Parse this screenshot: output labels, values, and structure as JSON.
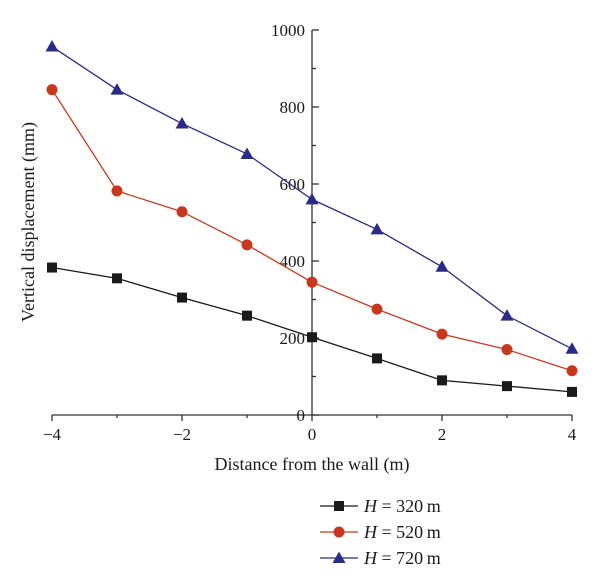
{
  "chart_data": {
    "type": "line",
    "xlabel": "Distance from the wall (m)",
    "ylabel": "Vertical displacement (mm)",
    "xlim": [
      -4,
      4
    ],
    "ylim": [
      0,
      1000
    ],
    "x_ticks": [
      -4,
      -2,
      0,
      2,
      4
    ],
    "x_tick_labels": [
      "−4",
      "−2",
      "0",
      "2",
      "4"
    ],
    "y_ticks": [
      0,
      200,
      400,
      600,
      800,
      1000
    ],
    "y_tick_labels": [
      "0",
      "200",
      "400",
      "600",
      "800",
      "1000"
    ],
    "x": [
      -4,
      -3,
      -2,
      -1,
      0,
      1,
      2,
      3,
      4
    ],
    "series": [
      {
        "name": "320",
        "marker": "square",
        "color": "#1a1a1a",
        "values": [
          383,
          355,
          305,
          258,
          202,
          147,
          90,
          75,
          60
        ]
      },
      {
        "name": "520",
        "marker": "circle",
        "color": "#c8381e",
        "values": [
          845,
          582,
          528,
          442,
          345,
          275,
          210,
          170,
          115
        ]
      },
      {
        "name": "720",
        "marker": "triangle",
        "color": "#2b2a86",
        "values": [
          957,
          845,
          757,
          678,
          560,
          482,
          385,
          258,
          172
        ]
      }
    ],
    "legend": {
      "placement": "bottom-center",
      "var_label": "H",
      "unit": "m"
    },
    "line_color": "#2b2a86",
    "grid": false
  }
}
